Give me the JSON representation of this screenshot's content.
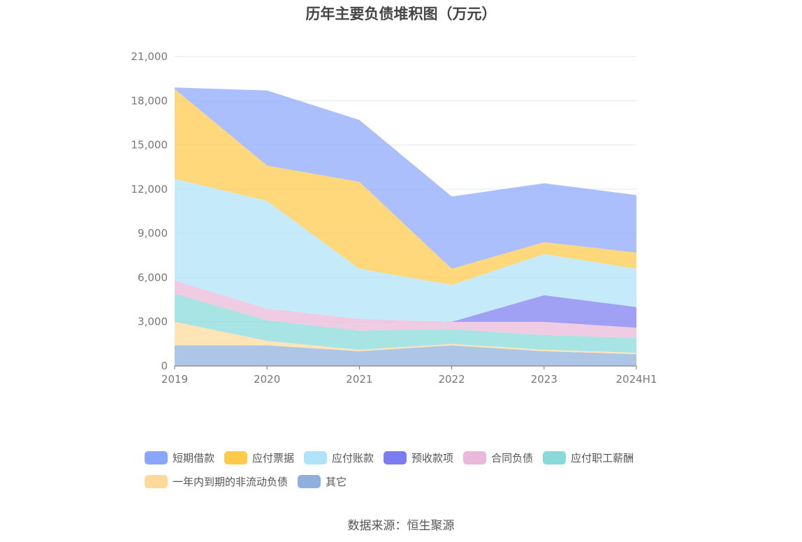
{
  "title": "历年主要负债堆积图（万元）",
  "source": "数据来源：恒生聚源",
  "chart_data": {
    "type": "area",
    "stacked": true,
    "title": "历年主要负债堆积图（万元）",
    "categories": [
      "2019",
      "2020",
      "2021",
      "2022",
      "2023",
      "2024H1"
    ],
    "ylim": [
      0,
      21000
    ],
    "yticks": [
      0,
      3000,
      6000,
      9000,
      12000,
      15000,
      18000,
      21000
    ],
    "ytick_labels": [
      "0",
      "3,000",
      "6,000",
      "9,000",
      "12,000",
      "15,000",
      "18,000",
      "21,000"
    ],
    "grid": true,
    "legend_position": "bottom",
    "series": [
      {
        "name": "其它",
        "color": "#8fb0dc",
        "values": [
          1400,
          1400,
          1000,
          1400,
          1000,
          800
        ]
      },
      {
        "name": "一年内到期的非流动负债",
        "color": "#ffd99a",
        "values": [
          1600,
          300,
          100,
          100,
          100,
          100
        ]
      },
      {
        "name": "应付职工薪酬",
        "color": "#88d9d9",
        "values": [
          1900,
          1400,
          1300,
          1000,
          1000,
          1000
        ]
      },
      {
        "name": "合同负债",
        "color": "#eab8d9",
        "values": [
          900,
          800,
          800,
          500,
          900,
          700
        ]
      },
      {
        "name": "预收款项",
        "color": "#7b7cf0",
        "values": [
          0,
          0,
          0,
          0,
          1800,
          1400
        ]
      },
      {
        "name": "应付账款",
        "color": "#aee3fa",
        "values": [
          6900,
          7300,
          3400,
          2500,
          2800,
          2600
        ]
      },
      {
        "name": "应付票据",
        "color": "#ffc94a",
        "values": [
          6100,
          2400,
          5900,
          1100,
          800,
          1100
        ]
      },
      {
        "name": "短期借款",
        "color": "#8aa6fb",
        "values": [
          100,
          5100,
          4200,
          4900,
          4000,
          3900
        ]
      }
    ],
    "legend_order": [
      "短期借款",
      "应付票据",
      "应付账款",
      "预收款项",
      "合同负债",
      "应付职工薪酬",
      "一年内到期的非流动负债",
      "其它"
    ]
  }
}
